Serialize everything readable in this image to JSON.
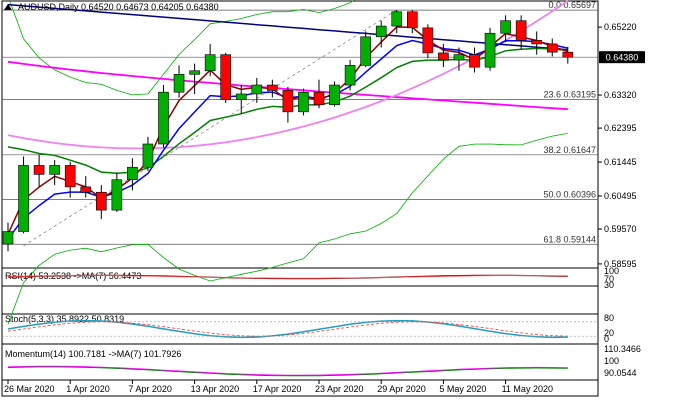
{
  "header": {
    "symbol": "AUDUSD,Daily",
    "ohlc": "0.64520 0.64673 0.64205 0.64380"
  },
  "colors": {
    "bull": "#00b000",
    "bear": "#ff0000",
    "ma_fast": "#8b0000",
    "ma_blue": "#0000ff",
    "ma_green": "#008000",
    "ma_magenta": "#ff00ff",
    "ma_pink": "#ee82ee",
    "navy": "#000080",
    "bb": "#00b000",
    "stoch": "#20a0c0",
    "rsi": "#8b0000"
  },
  "chart_data": {
    "type": "candlestick",
    "price_ticks": [
      "0.65220",
      "0.64380",
      "0.63320",
      "0.62395",
      "0.61445",
      "0.60495",
      "0.59570",
      "0.58595"
    ],
    "current_price": "0.64380",
    "fib_levels": [
      {
        "label": "0.0  0.65697",
        "value": 0.65697
      },
      {
        "label": "23.6  0.63195",
        "value": 0.63195
      },
      {
        "label": "38.2  0.61647",
        "value": 0.61647
      },
      {
        "label": "50.0  0.60396",
        "value": 0.60396
      },
      {
        "label": "61.8  0.59144",
        "value": 0.59144
      }
    ],
    "x_labels": [
      "26 Mar 2020",
      "1 Apr 2020",
      "7 Apr 2020",
      "13 Apr 2020",
      "17 Apr 2020",
      "23 Apr 2020",
      "29 Apr 2020",
      "5 May 2020",
      "11 May 2020"
    ],
    "candles": [
      [
        0.5915,
        0.5975,
        0.5895,
        0.595
      ],
      [
        0.595,
        0.616,
        0.5945,
        0.6135
      ],
      [
        0.6135,
        0.6165,
        0.6075,
        0.611
      ],
      [
        0.611,
        0.615,
        0.608,
        0.6135
      ],
      [
        0.6135,
        0.6145,
        0.6045,
        0.6075
      ],
      [
        0.6075,
        0.6105,
        0.6045,
        0.606
      ],
      [
        0.606,
        0.608,
        0.5985,
        0.601
      ],
      [
        0.601,
        0.6115,
        0.6005,
        0.6095
      ],
      [
        0.6095,
        0.6155,
        0.6065,
        0.613
      ],
      [
        0.613,
        0.6215,
        0.612,
        0.6195
      ],
      [
        0.6195,
        0.636,
        0.6185,
        0.634
      ],
      [
        0.634,
        0.6415,
        0.6325,
        0.639
      ],
      [
        0.639,
        0.642,
        0.6335,
        0.64
      ],
      [
        0.64,
        0.6475,
        0.6385,
        0.6445
      ],
      [
        0.6445,
        0.645,
        0.631,
        0.632
      ],
      [
        0.632,
        0.636,
        0.628,
        0.6335
      ],
      [
        0.6335,
        0.638,
        0.631,
        0.636
      ],
      [
        0.636,
        0.6375,
        0.6325,
        0.6345
      ],
      [
        0.6345,
        0.6355,
        0.6255,
        0.6285
      ],
      [
        0.6285,
        0.635,
        0.6275,
        0.634
      ],
      [
        0.634,
        0.6375,
        0.6295,
        0.6305
      ],
      [
        0.6305,
        0.637,
        0.63,
        0.636
      ],
      [
        0.636,
        0.643,
        0.6345,
        0.6415
      ],
      [
        0.6415,
        0.651,
        0.641,
        0.6495
      ],
      [
        0.6495,
        0.654,
        0.6465,
        0.6525
      ],
      [
        0.6525,
        0.657,
        0.6505,
        0.6565
      ],
      [
        0.6565,
        0.657,
        0.6505,
        0.652
      ],
      [
        0.652,
        0.653,
        0.6435,
        0.645
      ],
      [
        0.645,
        0.6475,
        0.641,
        0.643
      ],
      [
        0.643,
        0.6465,
        0.64,
        0.6445
      ],
      [
        0.6445,
        0.6465,
        0.6395,
        0.641
      ],
      [
        0.641,
        0.652,
        0.64,
        0.6505
      ],
      [
        0.6505,
        0.6555,
        0.648,
        0.654
      ],
      [
        0.654,
        0.6555,
        0.646,
        0.6485
      ],
      [
        0.6485,
        0.651,
        0.6445,
        0.6475
      ],
      [
        0.6475,
        0.649,
        0.644,
        0.6452
      ],
      [
        0.6452,
        0.6467,
        0.642,
        0.6438
      ]
    ],
    "indicators": {
      "rsi": {
        "label": "RSI(14) 53.2538 ->MA(7) 56.4473",
        "ticks": [
          "100",
          "70",
          "30",
          "0"
        ]
      },
      "stoch": {
        "label": "Stoch(5,3,3) 35.8922 50.8319",
        "ticks": [
          "80",
          "20",
          "0"
        ]
      },
      "momentum": {
        "label": "Momentum(14) 100.7181 ->MA(7) 101.7926",
        "ticks": [
          "110.3466",
          "100",
          "90.0544"
        ]
      }
    },
    "grid": false,
    "title": "",
    "xlabel": "",
    "ylabel": ""
  }
}
